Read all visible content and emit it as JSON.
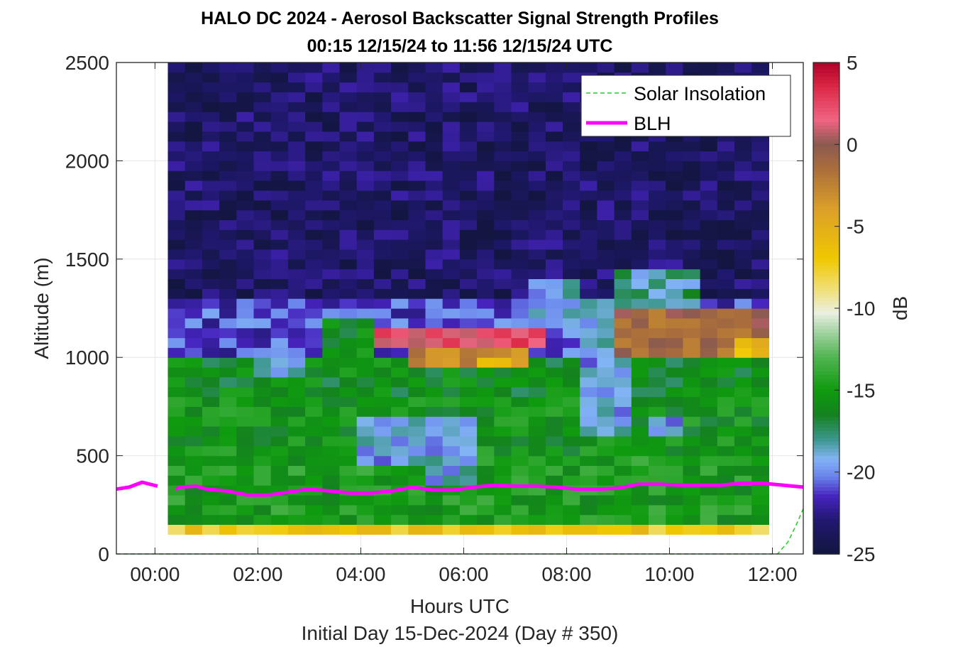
{
  "chart_data": {
    "type": "heatmap",
    "title": "HALO DC 2024 - Aerosol Backscatter Signal Strength Profiles",
    "subtitle": "00:15 12/15/24 to 11:56 12/15/24  UTC",
    "xlabel": "Hours UTC",
    "xlabel2": "Initial Day 15-Dec-2024 (Day # 350)",
    "ylabel": "Altitude (m)",
    "colorbar_label": "dB",
    "xlim": [
      -0.75,
      12.6
    ],
    "ylim": [
      0,
      2500
    ],
    "clim": [
      -25,
      5
    ],
    "x_ticks": [
      {
        "value": 0,
        "label": "00:00"
      },
      {
        "value": 2,
        "label": "02:00"
      },
      {
        "value": 4,
        "label": "04:00"
      },
      {
        "value": 6,
        "label": "06:00"
      },
      {
        "value": 8,
        "label": "08:00"
      },
      {
        "value": 10,
        "label": "10:00"
      },
      {
        "value": 12,
        "label": "12:00"
      }
    ],
    "y_ticks": [
      {
        "value": 0,
        "label": "0"
      },
      {
        "value": 500,
        "label": "500"
      },
      {
        "value": 1000,
        "label": "1000"
      },
      {
        "value": 1500,
        "label": "1500"
      },
      {
        "value": 2000,
        "label": "2000"
      },
      {
        "value": 2500,
        "label": "2500"
      }
    ],
    "colorbar_ticks": [
      {
        "value": 5,
        "label": "5"
      },
      {
        "value": 0,
        "label": "0"
      },
      {
        "value": -5,
        "label": "-5"
      },
      {
        "value": -10,
        "label": "-10"
      },
      {
        "value": -15,
        "label": "-15"
      },
      {
        "value": -20,
        "label": "-20"
      },
      {
        "value": -25,
        "label": "-25"
      }
    ],
    "grid": true,
    "legend_position": "top-right",
    "legend": [
      {
        "name": "Solar Insolation",
        "color": "#22cc22",
        "style": "dashed"
      },
      {
        "name": "BLH",
        "color": "#ff00ff",
        "style": "solid"
      }
    ],
    "heatmap": {
      "x_start": 0.25,
      "x_end": 11.93,
      "y_start": 100,
      "y_end": 2500,
      "y_bin": 50,
      "n_time_bins": 35,
      "layers": [
        {
          "y_from": 100,
          "y_to": 150,
          "value": -7
        },
        {
          "y_from": 150,
          "y_to": 500,
          "value": -15
        },
        {
          "y_from": 500,
          "y_to": 800,
          "value": -15.5
        },
        {
          "y_from": 800,
          "y_to": 1000,
          "value": -16
        },
        {
          "y_from": 1000,
          "y_to": 1300,
          "value": -21
        },
        {
          "y_from": 1300,
          "y_to": 2500,
          "value": -23.5
        }
      ],
      "patches": [
        {
          "t_from": 2.0,
          "t_to": 3.0,
          "y_from": 900,
          "y_to": 1050,
          "value": -19
        },
        {
          "t_from": 3.2,
          "t_to": 4.3,
          "y_from": 1000,
          "y_to": 1200,
          "value": -16
        },
        {
          "t_from": 4.3,
          "t_to": 7.6,
          "y_from": 1050,
          "y_to": 1150,
          "value": 2
        },
        {
          "t_from": 5.0,
          "t_to": 7.2,
          "y_from": 950,
          "y_to": 1050,
          "value": -3
        },
        {
          "t_from": 6.1,
          "t_to": 7.0,
          "y_from": 950,
          "y_to": 1000,
          "value": -6
        },
        {
          "t_from": 4.0,
          "t_to": 6.2,
          "y_from": 450,
          "y_to": 700,
          "value": -19.5
        },
        {
          "t_from": 5.4,
          "t_to": 6.2,
          "y_from": 350,
          "y_to": 500,
          "value": -19
        },
        {
          "t_from": 7.3,
          "t_to": 8.3,
          "y_from": 1150,
          "y_to": 1400,
          "value": -19
        },
        {
          "t_from": 8.3,
          "t_to": 9.1,
          "y_from": 600,
          "y_to": 1300,
          "value": -19.5
        },
        {
          "t_from": 9.0,
          "t_to": 12.0,
          "y_from": 1000,
          "y_to": 1250,
          "value": -1
        },
        {
          "t_from": 9.0,
          "t_to": 10.5,
          "y_from": 1250,
          "y_to": 1450,
          "value": -18
        },
        {
          "t_from": 9.5,
          "t_to": 10.1,
          "y_from": 600,
          "y_to": 700,
          "value": -19.5
        },
        {
          "t_from": 11.2,
          "t_to": 12.0,
          "y_from": 1000,
          "y_to": 1100,
          "value": -6
        }
      ]
    },
    "series": [
      {
        "name": "BLH",
        "x": [
          -0.75,
          -0.5,
          -0.25,
          0.05,
          0.4,
          0.5,
          0.8,
          1.0,
          1.4,
          1.8,
          2.2,
          2.6,
          3.0,
          3.4,
          3.8,
          4.2,
          4.6,
          5.0,
          5.4,
          5.8,
          6.2,
          6.6,
          7.0,
          7.4,
          7.8,
          8.2,
          8.6,
          9.0,
          9.4,
          9.8,
          10.2,
          10.6,
          11.0,
          11.4,
          11.8,
          12.2,
          12.6
        ],
        "y": [
          330,
          340,
          365,
          345,
          330,
          340,
          345,
          330,
          320,
          300,
          300,
          315,
          330,
          320,
          310,
          310,
          320,
          340,
          325,
          325,
          340,
          350,
          345,
          345,
          340,
          330,
          330,
          335,
          355,
          355,
          350,
          350,
          350,
          360,
          360,
          350,
          340
        ],
        "gaps_after_x": [
          0.05
        ]
      },
      {
        "name": "Solar Insolation",
        "x": [
          -0.75,
          12.1,
          12.3,
          12.45,
          12.6
        ],
        "y": [
          0,
          0,
          60,
          140,
          230
        ]
      }
    ]
  }
}
